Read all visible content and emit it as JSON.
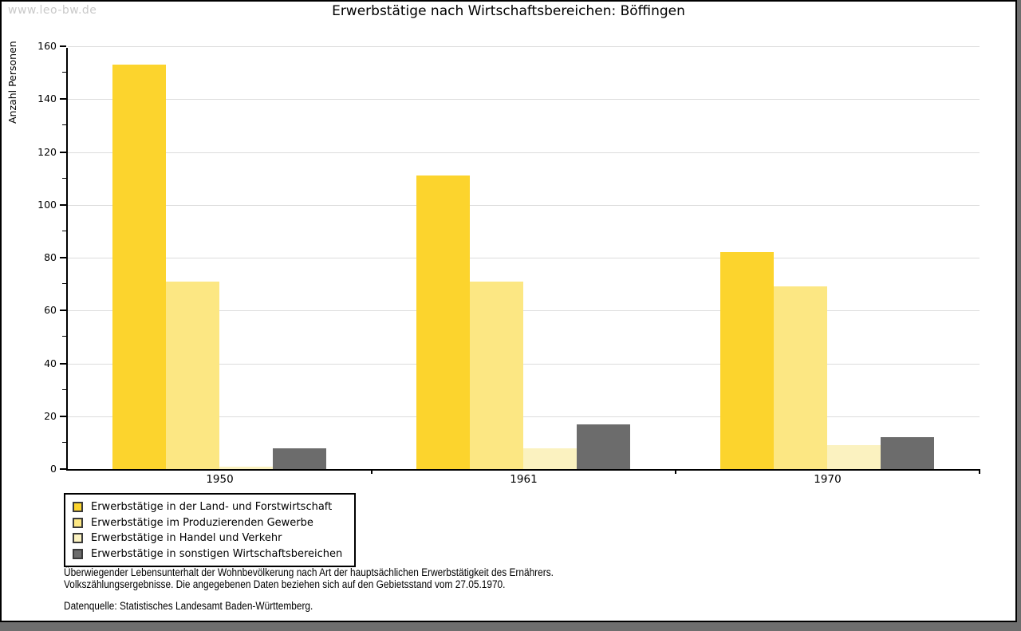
{
  "watermark": "www.leo-bw.de",
  "title": "Erwerbstätige nach Wirtschaftsbereichen: Böffingen",
  "chart_data": {
    "type": "bar",
    "title": "Erwerbstätige nach Wirtschaftsbereichen: Böffingen",
    "ylabel": "Anzahl Personen",
    "xlabel": "",
    "categories": [
      "1950",
      "1961",
      "1970"
    ],
    "series": [
      {
        "name": "Erwerbstätige in der Land- und Forstwirtschaft",
        "color": "#FCD42D",
        "values": [
          153,
          111,
          82
        ]
      },
      {
        "name": "Erwerbstätige im Produzierenden Gewerbe",
        "color": "#FCE783",
        "values": [
          71,
          71,
          69
        ]
      },
      {
        "name": "Erwerbstätige in Handel und Verkehr",
        "color": "#FBF2C0",
        "values": [
          1,
          8,
          9
        ]
      },
      {
        "name": "Erwerbstätige in sonstigen Wirtschaftsbereichen",
        "color": "#6C6C6C",
        "values": [
          8,
          17,
          12
        ]
      }
    ],
    "ylim": [
      0,
      160
    ],
    "ytick_step": 20,
    "ytick_minor_step": 10,
    "grid": true,
    "legend_position": "bottom-left"
  },
  "footnote": {
    "line1": "Überwiegender Lebensunterhalt der Wohnbevölkerung nach Art der hauptsächlichen Erwerbstätigkeit des Ernährers.",
    "line2": "Volkszählungsergebnisse. Die angegebenen Daten beziehen sich auf den Gebietsstand vom 27.05.1970."
  },
  "source": "Datenquelle: Statistisches Landesamt Baden-Württemberg."
}
